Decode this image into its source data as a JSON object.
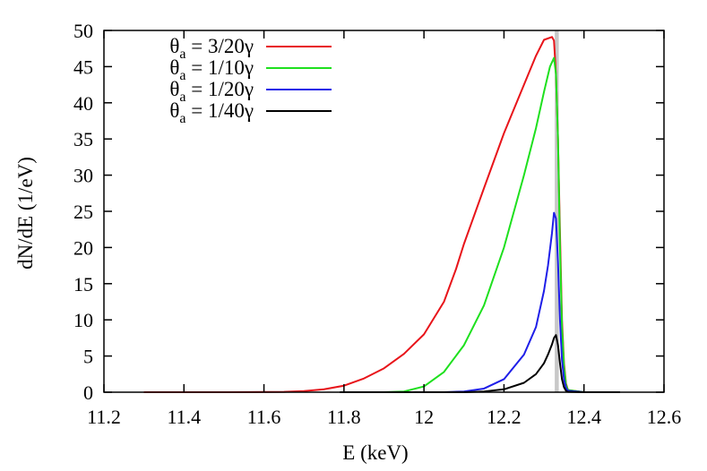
{
  "chart_data": {
    "type": "line",
    "title": "",
    "xlabel": "E (keV)",
    "ylabel": "dN/dE (1/eV)",
    "xlim": [
      11.2,
      12.6
    ],
    "ylim": [
      0,
      50
    ],
    "xticks": [
      11.2,
      11.4,
      11.6,
      11.8,
      12.0,
      12.2,
      12.4,
      12.6
    ],
    "xtick_labels": [
      "11.2",
      "11.4",
      "11.6",
      "11.8",
      "12",
      "12.2",
      "12.4",
      "12.6"
    ],
    "yticks": [
      0,
      5,
      10,
      15,
      20,
      25,
      30,
      35,
      40,
      45,
      50
    ],
    "ytick_labels": [
      "0",
      "5",
      "10",
      "15",
      "20",
      "25",
      "30",
      "35",
      "40",
      "45",
      "50"
    ],
    "grid": false,
    "legend_position": "top-left",
    "highlight_band": {
      "x0": 12.327,
      "x1": 12.337,
      "color": "#c8c8c8"
    },
    "series": [
      {
        "legend": {
          "sym": "θ",
          "sub": "a",
          "rest": " = 3/20γ"
        },
        "color": "#e8141a",
        "x": [
          11.3,
          11.5,
          11.65,
          11.7,
          11.75,
          11.8,
          11.85,
          11.9,
          11.95,
          12.0,
          12.05,
          12.08,
          12.1,
          12.15,
          12.2,
          12.25,
          12.28,
          12.3,
          12.32,
          12.325,
          12.33,
          12.335,
          12.34,
          12.345,
          12.35,
          12.355,
          12.36,
          12.4,
          12.49
        ],
        "y": [
          0,
          0,
          0.05,
          0.15,
          0.4,
          0.9,
          1.9,
          3.3,
          5.3,
          8.0,
          12.5,
          17.0,
          20.5,
          28.2,
          35.8,
          42.5,
          46.5,
          48.7,
          49.1,
          48.6,
          44.0,
          35.0,
          22.0,
          10.0,
          4.0,
          1.2,
          0.3,
          0,
          0
        ]
      },
      {
        "legend": {
          "sym": "θ",
          "sub": "a",
          "rest": " = 1/10γ"
        },
        "color": "#1ee01e",
        "x": [
          11.79,
          11.9,
          11.95,
          12.0,
          12.05,
          12.1,
          12.15,
          12.2,
          12.25,
          12.28,
          12.3,
          12.315,
          12.325,
          12.33,
          12.335,
          12.34,
          12.345,
          12.35,
          12.355,
          12.36,
          12.4,
          12.49
        ],
        "y": [
          0,
          0,
          0.1,
          0.8,
          2.8,
          6.5,
          12.0,
          20.0,
          30.0,
          36.5,
          41.5,
          45.0,
          46.2,
          44.0,
          35.0,
          20.0,
          9.0,
          3.5,
          1.0,
          0.3,
          0,
          0
        ]
      },
      {
        "legend": {
          "sym": "θ",
          "sub": "a",
          "rest": " = 1/20γ"
        },
        "color": "#1e1ee8",
        "x": [
          11.79,
          12.05,
          12.1,
          12.15,
          12.2,
          12.25,
          12.28,
          12.3,
          12.31,
          12.32,
          12.325,
          12.33,
          12.335,
          12.34,
          12.345,
          12.35,
          12.355,
          12.36,
          12.4,
          12.49
        ],
        "y": [
          0,
          0,
          0.1,
          0.5,
          1.8,
          5.2,
          9.0,
          14.0,
          17.5,
          22.0,
          24.8,
          24.0,
          18.0,
          10.0,
          4.5,
          1.8,
          0.6,
          0.2,
          0,
          0
        ]
      },
      {
        "legend": {
          "sym": "θ",
          "sub": "a",
          "rest": " = 1/40γ"
        },
        "color": "#000000",
        "x": [
          11.79,
          12.1,
          12.15,
          12.2,
          12.25,
          12.28,
          12.3,
          12.31,
          12.32,
          12.325,
          12.33,
          12.335,
          12.34,
          12.345,
          12.35,
          12.355,
          12.36,
          12.4,
          12.49
        ],
        "y": [
          0,
          0,
          0.1,
          0.4,
          1.3,
          2.5,
          4.0,
          5.2,
          6.6,
          7.5,
          7.9,
          6.5,
          4.0,
          1.8,
          0.7,
          0.2,
          0.05,
          0,
          0
        ]
      }
    ]
  }
}
